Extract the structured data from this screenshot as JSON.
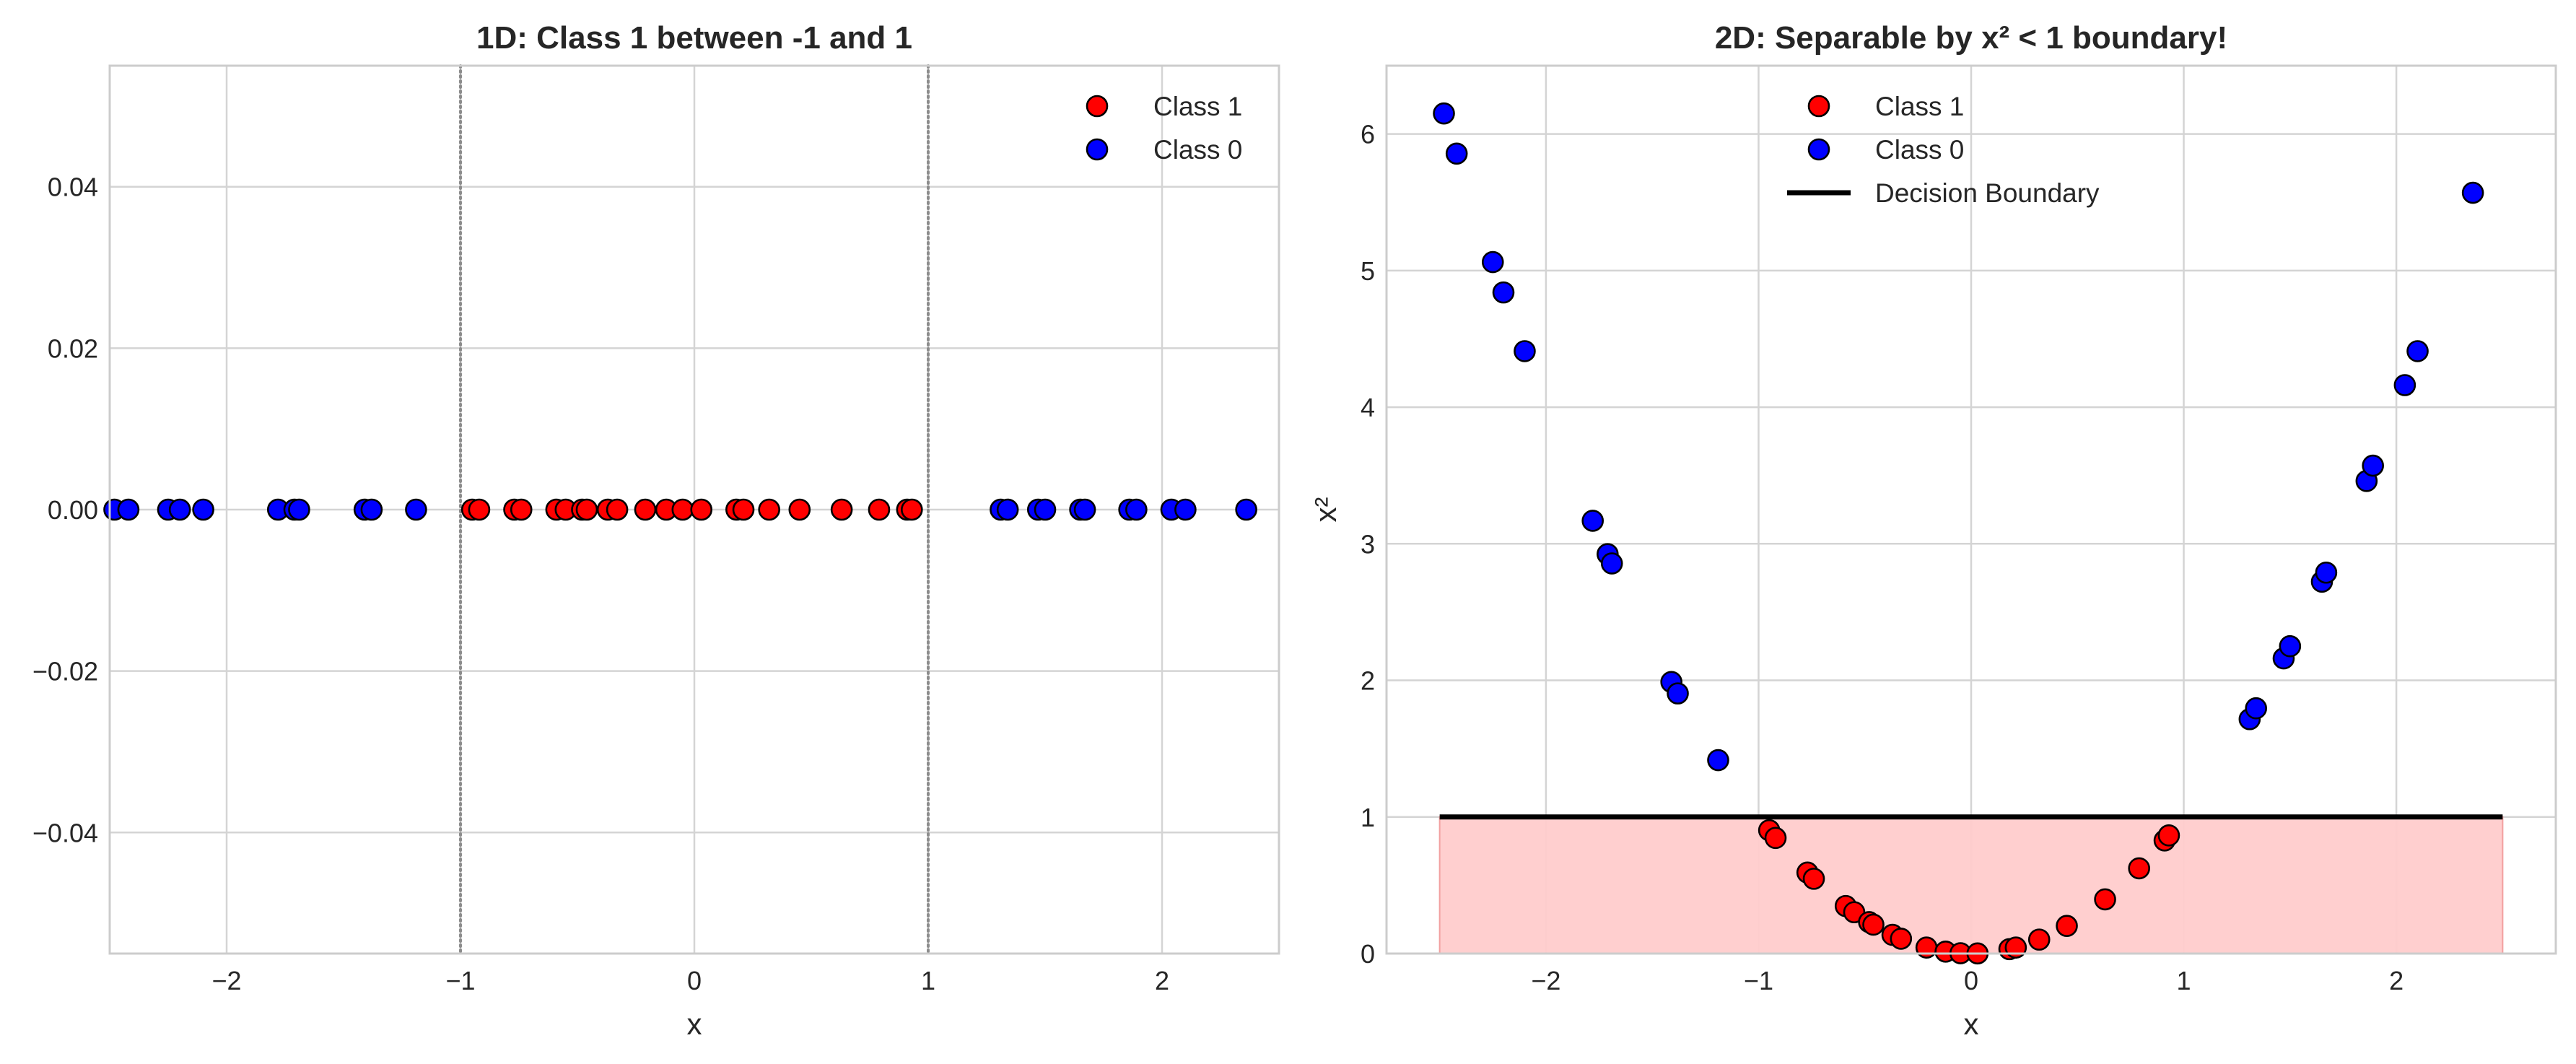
{
  "chart_data": [
    {
      "type": "scatter",
      "title": "1D: Class 1 between -1 and 1",
      "xlabel": "x",
      "ylabel": "",
      "xlim": [
        -2.5,
        2.5
      ],
      "ylim": [
        -0.055,
        0.055
      ],
      "xticks": [
        -2,
        -1,
        0,
        1,
        2
      ],
      "xtick_labels": [
        "−2",
        "−1",
        "0",
        "1",
        "2"
      ],
      "yticks": [
        -0.04,
        -0.02,
        0.0,
        0.02,
        0.04
      ],
      "ytick_labels": [
        "−0.04",
        "−0.02",
        "0.00",
        "0.02",
        "0.04"
      ],
      "grid": true,
      "legend_position": "top-right",
      "reference_lines": {
        "orientation": "vertical",
        "x": [
          -1,
          1
        ],
        "style": "dotted"
      },
      "series": [
        {
          "name": "Class 1",
          "color": "#ff0000",
          "x": [
            -0.95,
            -0.92,
            -0.77,
            -0.74,
            -0.59,
            -0.55,
            -0.48,
            -0.46,
            -0.37,
            -0.33,
            -0.21,
            -0.12,
            -0.05,
            0.03,
            0.18,
            0.21,
            0.32,
            0.45,
            0.63,
            0.79,
            0.91,
            0.93
          ],
          "y": [
            0,
            0,
            0,
            0,
            0,
            0,
            0,
            0,
            0,
            0,
            0,
            0,
            0,
            0,
            0,
            0,
            0,
            0,
            0,
            0,
            0,
            0
          ]
        },
        {
          "name": "Class 0",
          "color": "#0000ff",
          "x": [
            -2.48,
            -2.42,
            -2.25,
            -2.2,
            -2.1,
            -1.78,
            -1.71,
            -1.69,
            -1.41,
            -1.38,
            -1.19,
            1.31,
            1.34,
            1.47,
            1.5,
            1.65,
            1.67,
            1.86,
            1.89,
            2.04,
            2.1,
            2.36
          ],
          "y": [
            0,
            0,
            0,
            0,
            0,
            0,
            0,
            0,
            0,
            0,
            0,
            0,
            0,
            0,
            0,
            0,
            0,
            0,
            0,
            0,
            0,
            0
          ]
        }
      ]
    },
    {
      "type": "scatter",
      "title": "2D: Separable by x² < 1 boundary!",
      "xlabel": "x",
      "ylabel": "x²",
      "xlim": [
        -2.75,
        2.75
      ],
      "ylim": [
        0,
        6.5
      ],
      "xticks": [
        -2,
        -1,
        0,
        1,
        2
      ],
      "xtick_labels": [
        "−2",
        "−1",
        "0",
        "1",
        "2"
      ],
      "yticks": [
        0,
        1,
        2,
        3,
        4,
        5,
        6
      ],
      "ytick_labels": [
        "0",
        "1",
        "2",
        "3",
        "4",
        "5",
        "6"
      ],
      "grid": true,
      "legend_position": "top-center",
      "shaded_region": {
        "x": [
          -2.5,
          2.5
        ],
        "y": [
          0,
          1
        ],
        "color": "#ffcccc"
      },
      "series": [
        {
          "name": "Class 1",
          "color": "#ff0000",
          "x": [
            -0.95,
            -0.92,
            -0.77,
            -0.74,
            -0.59,
            -0.55,
            -0.48,
            -0.46,
            -0.37,
            -0.33,
            -0.21,
            -0.12,
            -0.05,
            0.03,
            0.18,
            0.21,
            0.32,
            0.45,
            0.63,
            0.79,
            0.91,
            0.93
          ],
          "y": [
            0.9025,
            0.8464,
            0.5929,
            0.5476,
            0.3481,
            0.3025,
            0.2304,
            0.2116,
            0.1369,
            0.1089,
            0.0441,
            0.0144,
            0.0025,
            0.0009,
            0.0324,
            0.0441,
            0.1024,
            0.2025,
            0.3969,
            0.6241,
            0.8281,
            0.8649
          ]
        },
        {
          "name": "Class 0",
          "color": "#0000ff",
          "x": [
            -2.48,
            -2.42,
            -2.25,
            -2.2,
            -2.1,
            -1.78,
            -1.71,
            -1.69,
            -1.41,
            -1.38,
            -1.19,
            1.31,
            1.34,
            1.47,
            1.5,
            1.65,
            1.67,
            1.86,
            1.89,
            2.04,
            2.1,
            2.36
          ],
          "y": [
            6.1504,
            5.8564,
            5.0625,
            4.84,
            4.41,
            3.1684,
            2.9241,
            2.8561,
            1.9881,
            1.9044,
            1.4161,
            1.7161,
            1.7956,
            2.1609,
            2.25,
            2.7225,
            2.7889,
            3.4596,
            3.5721,
            4.1616,
            4.41,
            5.5696
          ]
        },
        {
          "name": "Decision Boundary",
          "type": "line",
          "color": "#000000",
          "x": [
            -2.5,
            2.5
          ],
          "y": [
            1,
            1
          ]
        }
      ]
    }
  ]
}
